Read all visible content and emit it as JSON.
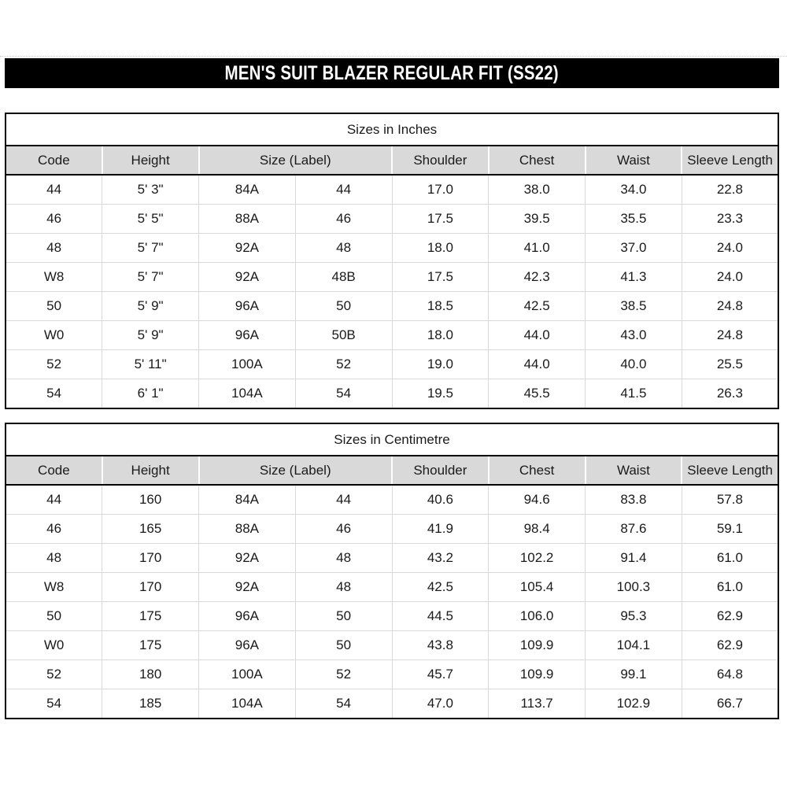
{
  "page": {
    "title": "MEN'S SUIT BLAZER REGULAR FIT (SS22)"
  },
  "colors": {
    "title_bar_bg": "#000000",
    "title_bar_text": "#ffffff",
    "header_row_bg": "#d9d9d9",
    "grid_line": "#d9d9d9",
    "outer_border": "#000000",
    "body_text": "#1a1a1a"
  },
  "tables": [
    {
      "title": "Sizes in Inches",
      "columns": [
        {
          "label": "Code",
          "span": 1
        },
        {
          "label": "Height",
          "span": 1
        },
        {
          "label": "Size (Label)",
          "span": 2
        },
        {
          "label": "Shoulder",
          "span": 1
        },
        {
          "label": "Chest",
          "span": 1
        },
        {
          "label": "Waist",
          "span": 1
        },
        {
          "label": "Sleeve Length",
          "span": 1
        }
      ],
      "rows": [
        [
          "44",
          "5' 3\"",
          "84A",
          "44",
          "17.0",
          "38.0",
          "34.0",
          "22.8"
        ],
        [
          "46",
          "5' 5\"",
          "88A",
          "46",
          "17.5",
          "39.5",
          "35.5",
          "23.3"
        ],
        [
          "48",
          "5' 7\"",
          "92A",
          "48",
          "18.0",
          "41.0",
          "37.0",
          "24.0"
        ],
        [
          "W8",
          "5' 7\"",
          "92A",
          "48B",
          "17.5",
          "42.3",
          "41.3",
          "24.0"
        ],
        [
          "50",
          "5' 9\"",
          "96A",
          "50",
          "18.5",
          "42.5",
          "38.5",
          "24.8"
        ],
        [
          "W0",
          "5' 9\"",
          "96A",
          "50B",
          "18.0",
          "44.0",
          "43.0",
          "24.8"
        ],
        [
          "52",
          "5' 11\"",
          "100A",
          "52",
          "19.0",
          "44.0",
          "40.0",
          "25.5"
        ],
        [
          "54",
          "6' 1\"",
          "104A",
          "54",
          "19.5",
          "45.5",
          "41.5",
          "26.3"
        ]
      ]
    },
    {
      "title": "Sizes in Centimetre",
      "columns": [
        {
          "label": "Code",
          "span": 1
        },
        {
          "label": "Height",
          "span": 1
        },
        {
          "label": "Size (Label)",
          "span": 2
        },
        {
          "label": "Shoulder",
          "span": 1
        },
        {
          "label": "Chest",
          "span": 1
        },
        {
          "label": "Waist",
          "span": 1
        },
        {
          "label": "Sleeve Length",
          "span": 1
        }
      ],
      "rows": [
        [
          "44",
          "160",
          "84A",
          "44",
          "40.6",
          "94.6",
          "83.8",
          "57.8"
        ],
        [
          "46",
          "165",
          "88A",
          "46",
          "41.9",
          "98.4",
          "87.6",
          "59.1"
        ],
        [
          "48",
          "170",
          "92A",
          "48",
          "43.2",
          "102.2",
          "91.4",
          "61.0"
        ],
        [
          "W8",
          "170",
          "92A",
          "48",
          "42.5",
          "105.4",
          "100.3",
          "61.0"
        ],
        [
          "50",
          "175",
          "96A",
          "50",
          "44.5",
          "106.0",
          "95.3",
          "62.9"
        ],
        [
          "W0",
          "175",
          "96A",
          "50",
          "43.8",
          "109.9",
          "104.1",
          "62.9"
        ],
        [
          "52",
          "180",
          "100A",
          "52",
          "45.7",
          "109.9",
          "99.1",
          "64.8"
        ],
        [
          "54",
          "185",
          "104A",
          "54",
          "47.0",
          "113.7",
          "102.9",
          "66.7"
        ]
      ]
    }
  ]
}
